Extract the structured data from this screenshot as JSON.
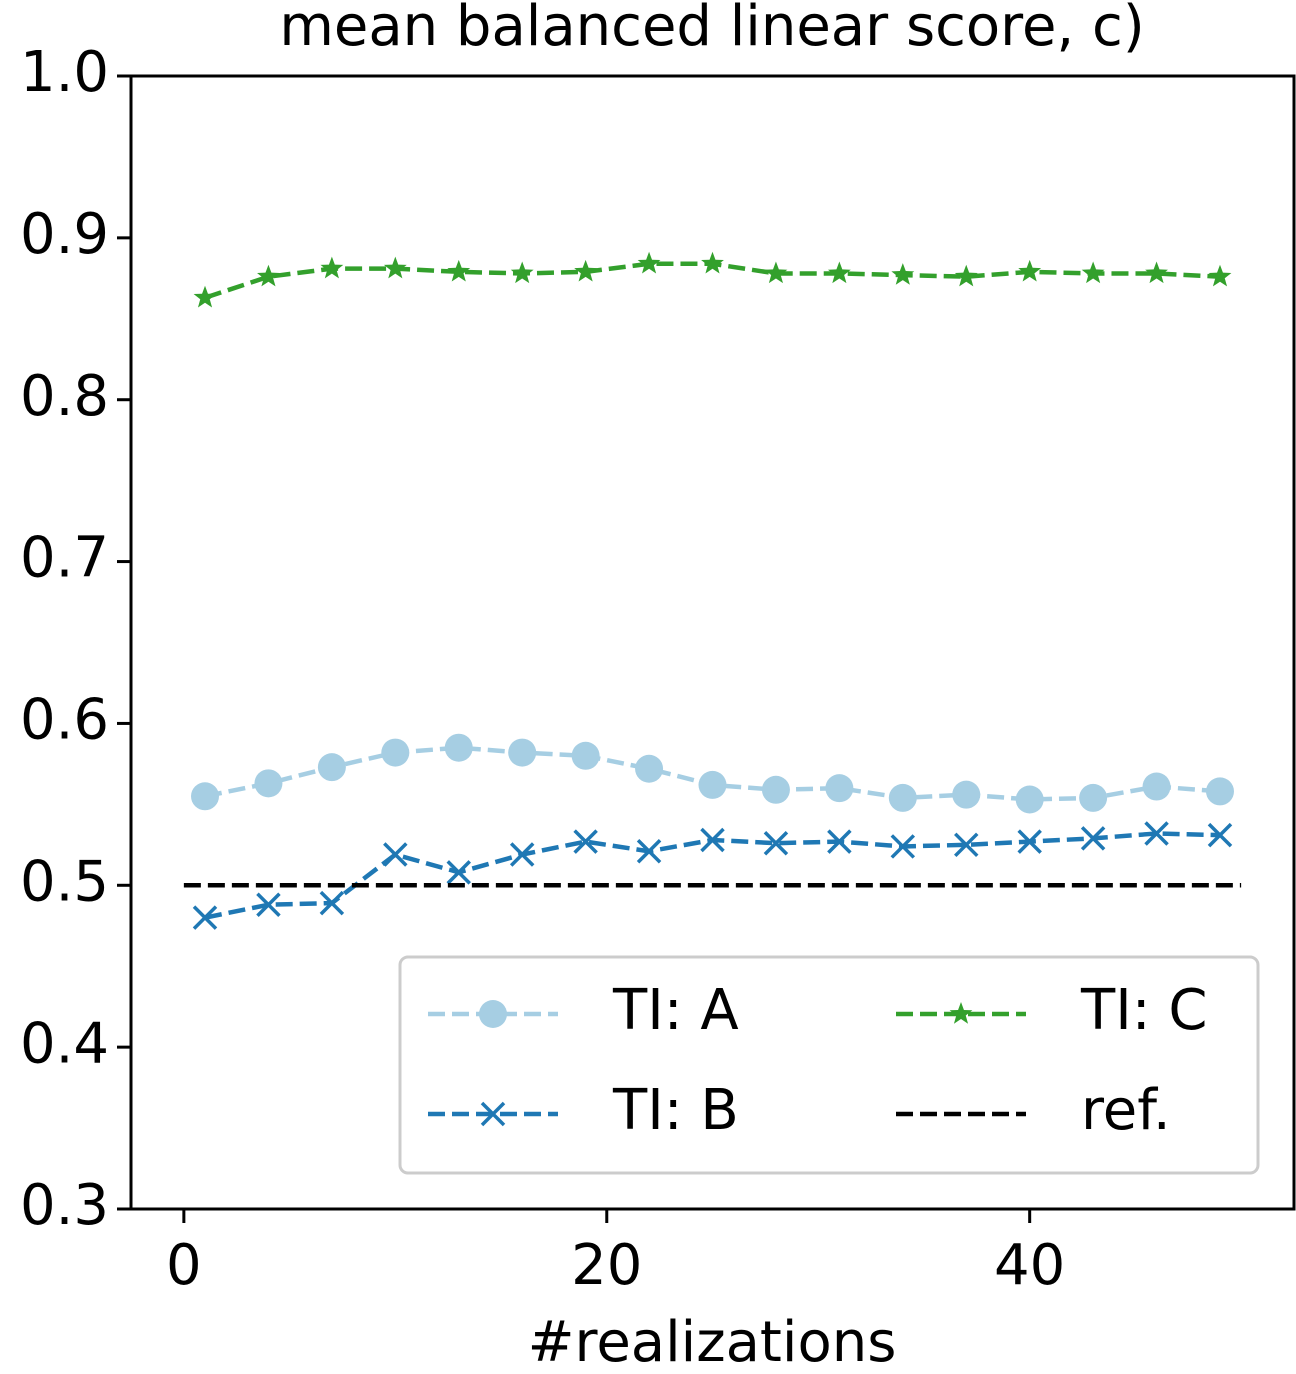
{
  "chart_data": {
    "type": "line",
    "title": "mean balanced linear score, c)",
    "x_label": "#realizations",
    "xlim": [
      -2.5,
      52.5
    ],
    "xticks": [
      0,
      20,
      40
    ],
    "ylim": [
      0.3,
      1.0
    ],
    "yticks": [
      0.3,
      0.4,
      0.5,
      0.6,
      0.7,
      0.8,
      0.9,
      {
        "value": 1.0,
        "label": "1.0"
      }
    ],
    "legend": "lower right",
    "series": [
      {
        "name": "TI: A",
        "color": "#a6cee3",
        "marker": "circle",
        "linestyle": "dashed",
        "x": [
          1,
          4,
          7,
          10,
          13,
          16,
          19,
          22,
          25,
          28,
          31,
          34,
          37,
          40,
          43,
          46,
          49
        ],
        "values": [
          0.555,
          0.563,
          0.573,
          0.582,
          0.585,
          0.582,
          0.58,
          0.572,
          0.562,
          0.559,
          0.56,
          0.554,
          0.556,
          0.553,
          0.554,
          0.561,
          0.558
        ]
      },
      {
        "name": "TI: B",
        "color": "#1f78b4",
        "marker": "x",
        "linestyle": "dashed",
        "x": [
          1,
          4,
          7,
          10,
          13,
          16,
          19,
          22,
          25,
          28,
          31,
          34,
          37,
          40,
          43,
          46,
          49
        ],
        "values": [
          0.48,
          0.488,
          0.489,
          0.519,
          0.508,
          0.519,
          0.527,
          0.521,
          0.528,
          0.526,
          0.527,
          0.524,
          0.525,
          0.527,
          0.529,
          0.532,
          0.531
        ]
      },
      {
        "name": "TI: C",
        "color": "#33a02c",
        "marker": "star",
        "linestyle": "dashed",
        "x": [
          1,
          4,
          7,
          10,
          13,
          16,
          19,
          22,
          25,
          28,
          31,
          34,
          37,
          40,
          43,
          46,
          49
        ],
        "values": [
          0.863,
          0.876,
          0.881,
          0.881,
          0.879,
          0.878,
          0.879,
          0.884,
          0.884,
          0.878,
          0.878,
          0.877,
          0.876,
          0.879,
          0.878,
          0.878,
          0.876
        ]
      },
      {
        "name": "ref.",
        "color": "#000000",
        "marker": "none",
        "linestyle": "dashed",
        "x": [
          0,
          50
        ],
        "values": [
          0.5,
          0.5
        ]
      }
    ]
  }
}
